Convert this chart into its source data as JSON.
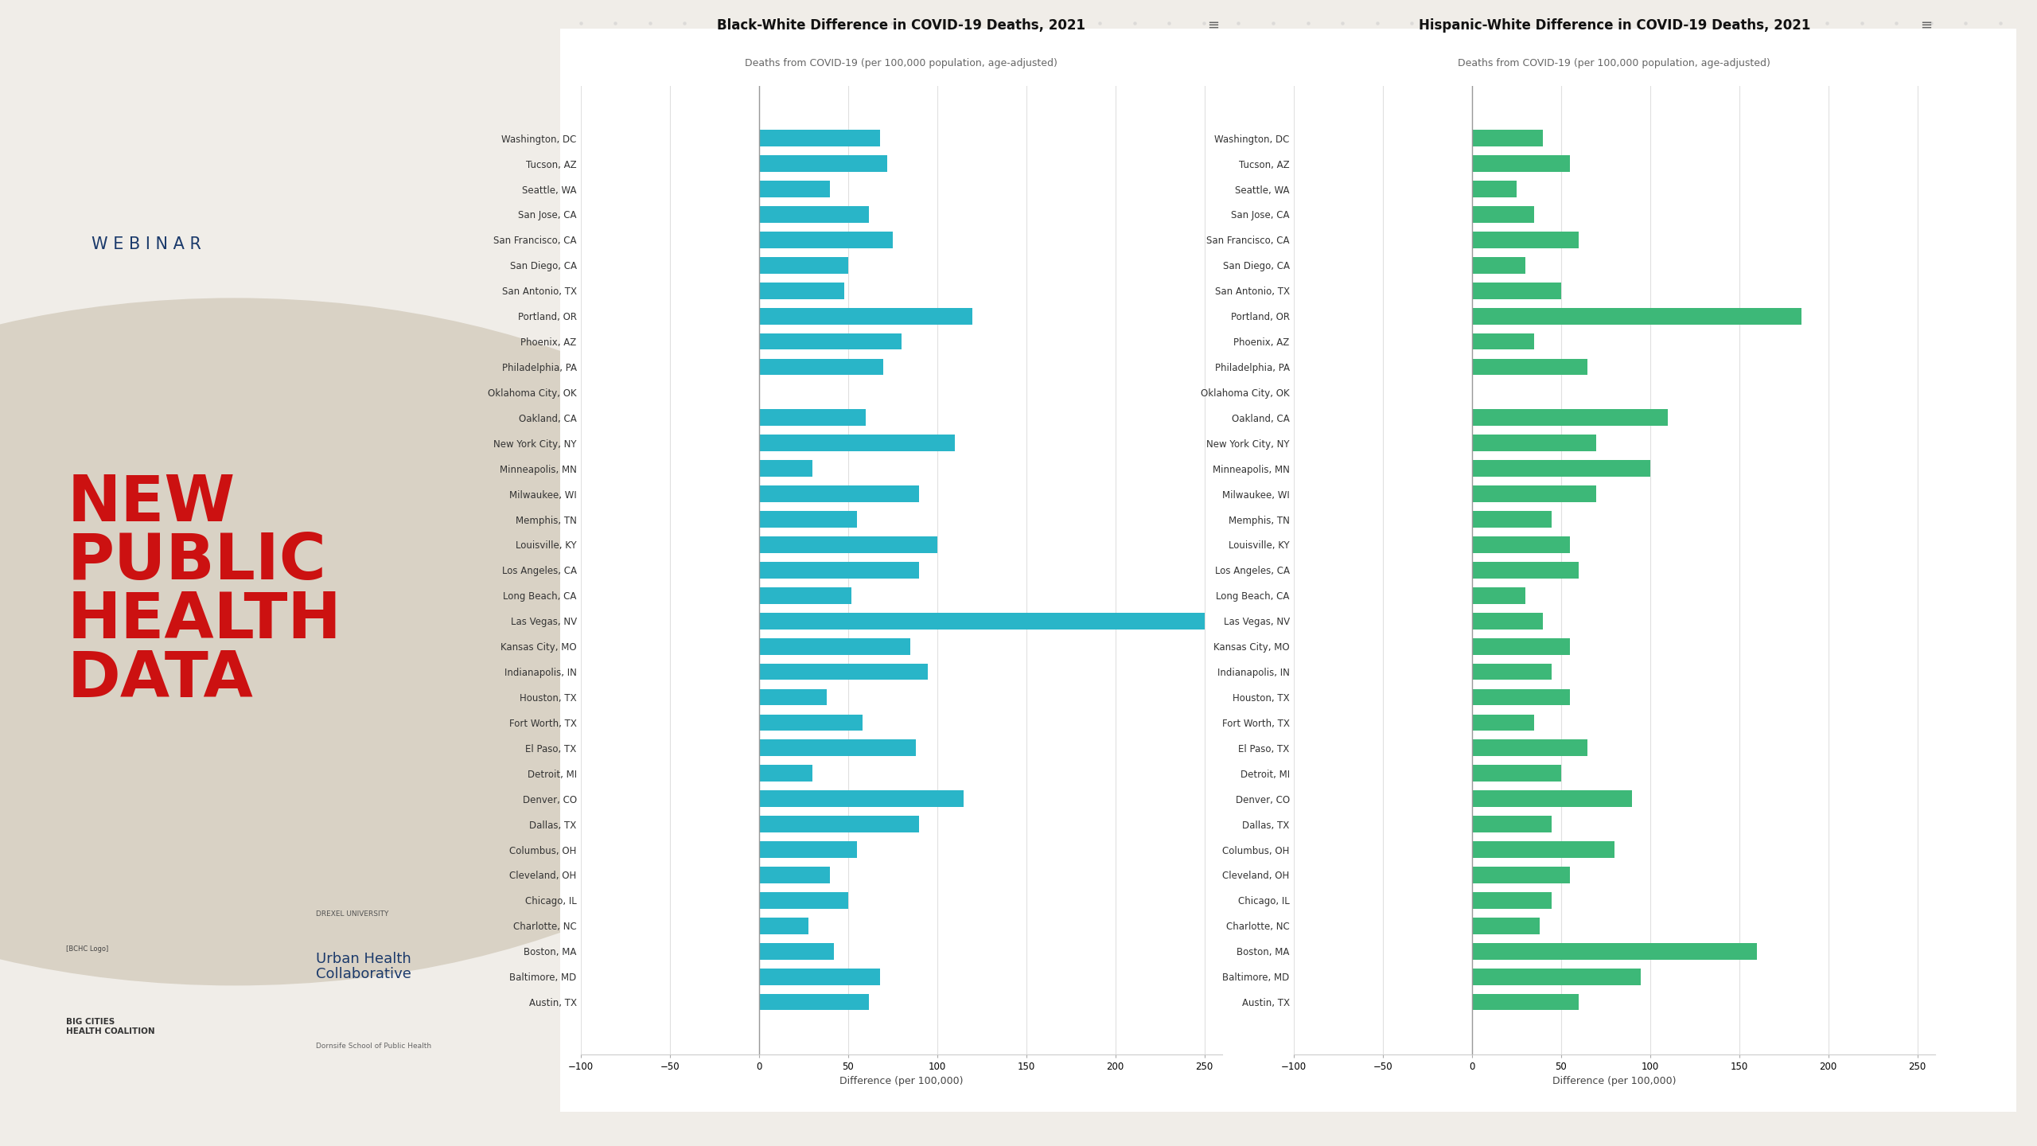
{
  "cities": [
    "Austin, TX",
    "Baltimore, MD",
    "Boston, MA",
    "Charlotte, NC",
    "Chicago, IL",
    "Cleveland, OH",
    "Columbus, OH",
    "Dallas, TX",
    "Denver, CO",
    "Detroit, MI",
    "El Paso, TX",
    "Fort Worth, TX",
    "Houston, TX",
    "Indianapolis, IN",
    "Kansas City, MO",
    "Las Vegas, NV",
    "Long Beach, CA",
    "Los Angeles, CA",
    "Louisville, KY",
    "Memphis, TN",
    "Milwaukee, WI",
    "Minneapolis, MN",
    "New York City, NY",
    "Oakland, CA",
    "Oklahoma City, OK",
    "Philadelphia, PA",
    "Phoenix, AZ",
    "Portland, OR",
    "San Antonio, TX",
    "San Diego, CA",
    "San Francisco, CA",
    "San Jose, CA",
    "Seattle, WA",
    "Tucson, AZ",
    "Washington, DC"
  ],
  "black_white": [
    68,
    72,
    40,
    62,
    75,
    50,
    48,
    120,
    80,
    70,
    0,
    60,
    110,
    30,
    90,
    55,
    100,
    90,
    52,
    250,
    85,
    95,
    38,
    58,
    88,
    30,
    115,
    90,
    55,
    40,
    50,
    28,
    42,
    68,
    62
  ],
  "hispanic_white": [
    40,
    55,
    25,
    35,
    60,
    30,
    50,
    185,
    35,
    65,
    0,
    110,
    70,
    100,
    70,
    45,
    55,
    60,
    30,
    40,
    55,
    45,
    55,
    35,
    65,
    50,
    90,
    45,
    80,
    55,
    45,
    38,
    160,
    95,
    60
  ],
  "title1": "Black-White Difference in COVID-19 Deaths, 2021",
  "title2": "Hispanic-White Difference in COVID-19 Deaths, 2021",
  "subtitle": "Deaths from COVID-19 (per 100,000 population, age-adjusted)",
  "xlabel": "Difference (per 100,000)",
  "xlim": [
    -100,
    260
  ],
  "xticks": [
    -100,
    -50,
    0,
    50,
    100,
    150,
    200,
    250
  ],
  "bar_color_black": "#29B5C8",
  "bar_color_hispanic": "#3DB878",
  "bg_color": "#F0EDE8",
  "circle_color": "#D9D2C5",
  "dot_color": "#CCCCCC",
  "webinar_color": "#1B3A6B",
  "headline_color": "#CC1111",
  "title_fontsize": 12,
  "subtitle_fontsize": 9,
  "label_fontsize": 8.5,
  "tick_fontsize": 8.5
}
